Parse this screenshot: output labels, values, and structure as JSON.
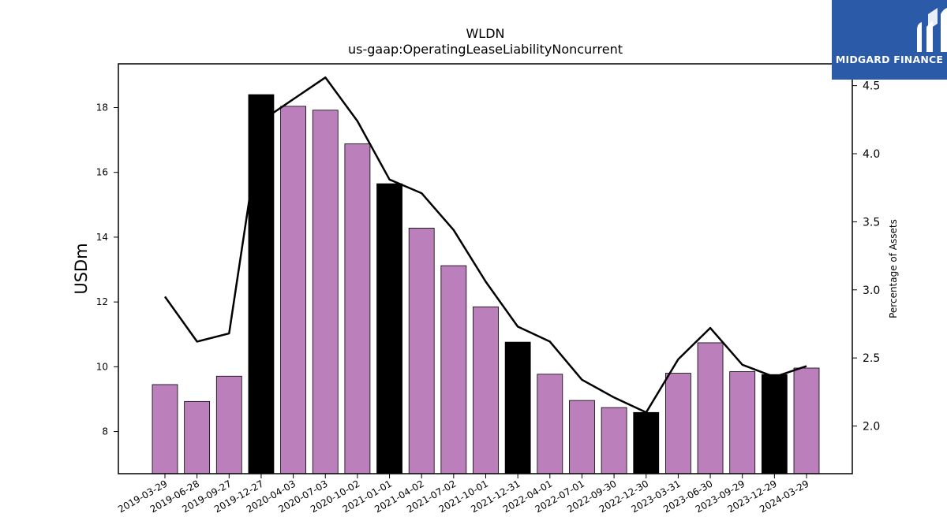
{
  "brand": {
    "name": "MIDGARD FINANCE",
    "bg_color": "#2a5aa8"
  },
  "chart_data": {
    "type": "bar",
    "title": "WLDN",
    "subtitle": "us-gaap:OperatingLeaseLiabilityNoncurrent",
    "ylabel": "USDm",
    "y2label": "Percentage of Assets",
    "ylim": [
      6.7,
      19.35
    ],
    "y2lim": [
      1.65,
      4.66
    ],
    "yticks": [
      8,
      10,
      12,
      14,
      16,
      18
    ],
    "y2ticks": [
      2.0,
      2.5,
      3.0,
      3.5,
      4.0,
      4.5
    ],
    "categories": [
      "2019-03-29",
      "2019-06-28",
      "2019-09-27",
      "2019-12-27",
      "2020-04-03",
      "2020-07-03",
      "2020-10-02",
      "2021-01-01",
      "2021-04-02",
      "2021-07-02",
      "2021-10-01",
      "2021-12-31",
      "2022-04-01",
      "2022-07-01",
      "2022-09-30",
      "2022-12-30",
      "2023-03-31",
      "2023-06-30",
      "2023-09-29",
      "2023-12-29",
      "2024-03-29"
    ],
    "values": [
      9.45,
      8.93,
      9.71,
      18.4,
      18.04,
      17.92,
      16.88,
      15.65,
      14.28,
      13.12,
      11.85,
      10.76,
      9.77,
      8.96,
      8.74,
      8.59,
      9.8,
      10.74,
      9.85,
      9.76,
      9.96
    ],
    "year_end": [
      false,
      false,
      false,
      true,
      false,
      false,
      false,
      true,
      false,
      false,
      false,
      true,
      false,
      false,
      false,
      true,
      false,
      false,
      false,
      true,
      false
    ],
    "line_values": [
      2.95,
      2.62,
      2.68,
      4.24,
      4.4,
      4.56,
      4.24,
      3.81,
      3.71,
      3.44,
      3.06,
      2.73,
      2.62,
      2.34,
      2.21,
      2.1,
      2.49,
      2.72,
      2.45,
      2.36,
      2.44
    ],
    "colors": {
      "bar": "#bb7fbc",
      "bar_year_end": "#000000",
      "line": "#000000"
    },
    "grid": false
  }
}
